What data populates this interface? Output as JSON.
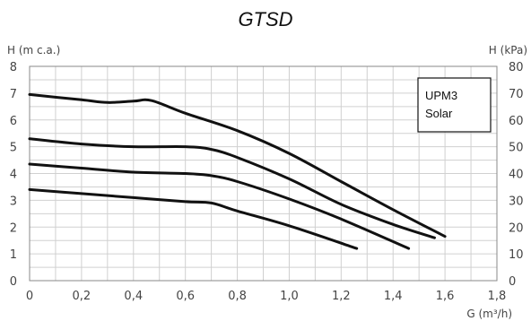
{
  "chart_data": {
    "type": "line",
    "title": "GTSD",
    "ylabel_left": "H (m c.a.)",
    "ylabel_right": "H (kPa)",
    "xlabel": "G (m³/h)",
    "xlim": [
      0,
      1.8
    ],
    "ylim": [
      0,
      8
    ],
    "ylim_right": [
      0,
      80
    ],
    "x_ticks": [
      "0",
      "0,2",
      "0,4",
      "0,6",
      "0,8",
      "1,0",
      "1,2",
      "1,4",
      "1,6",
      "1,8"
    ],
    "y_ticks_left": [
      "0",
      "1",
      "2",
      "3",
      "4",
      "5",
      "6",
      "7",
      "8"
    ],
    "y_ticks_right": [
      "0",
      "10",
      "20",
      "30",
      "40",
      "50",
      "60",
      "70",
      "80"
    ],
    "grid": true,
    "legend": {
      "lines": [
        "UPM3",
        "Solar"
      ],
      "placement": "top-right"
    },
    "series": [
      {
        "x": [
          0,
          0.2,
          0.3,
          0.4,
          0.47,
          0.6,
          0.8,
          1.0,
          1.2,
          1.4,
          1.6
        ],
        "y": [
          6.95,
          6.75,
          6.65,
          6.7,
          6.72,
          6.25,
          5.6,
          4.75,
          3.7,
          2.65,
          1.65
        ]
      },
      {
        "x": [
          0,
          0.2,
          0.4,
          0.6,
          0.7,
          0.8,
          1.0,
          1.2,
          1.4,
          1.56
        ],
        "y": [
          5.3,
          5.1,
          5.0,
          5.0,
          4.9,
          4.6,
          3.8,
          2.85,
          2.1,
          1.6
        ]
      },
      {
        "x": [
          0,
          0.2,
          0.4,
          0.6,
          0.7,
          0.8,
          1.0,
          1.2,
          1.46
        ],
        "y": [
          4.35,
          4.2,
          4.05,
          4.0,
          3.92,
          3.7,
          3.05,
          2.3,
          1.2
        ]
      },
      {
        "x": [
          0,
          0.2,
          0.4,
          0.6,
          0.7,
          0.8,
          1.0,
          1.26
        ],
        "y": [
          3.4,
          3.25,
          3.1,
          2.95,
          2.9,
          2.6,
          2.05,
          1.2
        ]
      }
    ]
  }
}
